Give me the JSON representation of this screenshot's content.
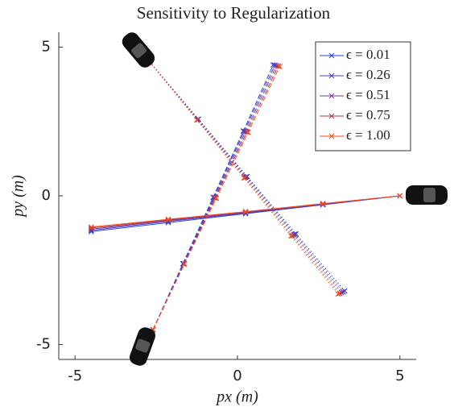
{
  "chart_data": {
    "type": "line",
    "title": "Sensitivity to Regularization",
    "xlabel": "px (m)",
    "ylabel": "py (m)",
    "xlim": [
      -5.5,
      5.5
    ],
    "ylim": [
      -5.5,
      5.5
    ],
    "xticks": [
      -5,
      0,
      5
    ],
    "yticks": [
      -5,
      0,
      5
    ],
    "legend": "upper right",
    "trajectory_styles": [
      "dotted",
      "dashed",
      "solid"
    ],
    "series": [
      {
        "name": "ϵ = 0.01",
        "color": "#2446e0",
        "trajectories": [
          {
            "x": [
              -2.7,
              -1.2,
              0.3,
              1.8,
              3.3
            ],
            "y": [
              4.5,
              2.58,
              0.65,
              -1.28,
              -3.2
            ]
          },
          {
            "x": [
              -2.6,
              -1.68,
              -0.75,
              0.18,
              1.1
            ],
            "y": [
              -4.5,
              -2.28,
              -0.05,
              2.18,
              4.4
            ]
          },
          {
            "x": [
              5,
              2.63,
              0.25,
              -2.13,
              -4.5
            ],
            "y": [
              0,
              -0.3,
              -0.6,
              -0.9,
              -1.2
            ]
          }
        ]
      },
      {
        "name": "ϵ = 0.26",
        "color": "#4a3cc8",
        "trajectories": [
          {
            "x": [
              -2.7,
              -1.21,
              0.28,
              1.76,
              3.25
            ],
            "y": [
              4.5,
              2.57,
              0.64,
              -1.29,
              -3.23
            ]
          },
          {
            "x": [
              -2.6,
              -1.66,
              -0.73,
              0.21,
              1.15
            ],
            "y": [
              -4.5,
              -2.28,
              -0.06,
              2.17,
              4.39
            ]
          },
          {
            "x": [
              5,
              2.63,
              0.25,
              -2.13,
              -4.5
            ],
            "y": [
              0,
              -0.29,
              -0.58,
              -0.86,
              -1.16
            ]
          }
        ]
      },
      {
        "name": "ϵ = 0.51",
        "color": "#7a3a98",
        "trajectories": [
          {
            "x": [
              -2.7,
              -1.22,
              0.25,
              1.73,
              3.2
            ],
            "y": [
              4.5,
              2.56,
              0.63,
              -1.31,
              -3.25
            ]
          },
          {
            "x": [
              -2.6,
              -1.65,
              -0.7,
              0.25,
              1.2
            ],
            "y": [
              -4.5,
              -2.28,
              -0.06,
              2.16,
              4.38
            ]
          },
          {
            "x": [
              5,
              2.63,
              0.25,
              -2.13,
              -4.5
            ],
            "y": [
              0,
              -0.28,
              -0.56,
              -0.83,
              -1.12
            ]
          }
        ]
      },
      {
        "name": "ϵ = 0.75",
        "color": "#b03a4c",
        "trajectories": [
          {
            "x": [
              -2.7,
              -1.24,
              0.23,
              1.69,
              3.15
            ],
            "y": [
              4.5,
              2.56,
              0.61,
              -1.34,
              -3.28
            ]
          },
          {
            "x": [
              -2.6,
              -1.64,
              -0.68,
              0.29,
              1.25
            ],
            "y": [
              -4.5,
              -2.29,
              -0.07,
              2.15,
              4.36
            ]
          },
          {
            "x": [
              5,
              2.63,
              0.25,
              -2.13,
              -4.5
            ],
            "y": [
              0,
              -0.27,
              -0.54,
              -0.81,
              -1.08
            ]
          }
        ]
      },
      {
        "name": "ϵ = 1.00",
        "color": "#ff4a1a",
        "trajectories": [
          {
            "x": [
              -2.7,
              -1.25,
              0.2,
              1.65,
              3.1
            ],
            "y": [
              4.5,
              2.55,
              0.6,
              -1.35,
              -3.3
            ]
          },
          {
            "x": [
              -2.6,
              -1.63,
              -0.65,
              0.33,
              1.3
            ],
            "y": [
              -4.5,
              -2.29,
              -0.08,
              2.14,
              4.35
            ]
          },
          {
            "x": [
              5,
              2.63,
              0.25,
              -2.13,
              -4.5
            ],
            "y": [
              0,
              -0.26,
              -0.53,
              -0.79,
              -1.05
            ]
          }
        ]
      }
    ]
  }
}
